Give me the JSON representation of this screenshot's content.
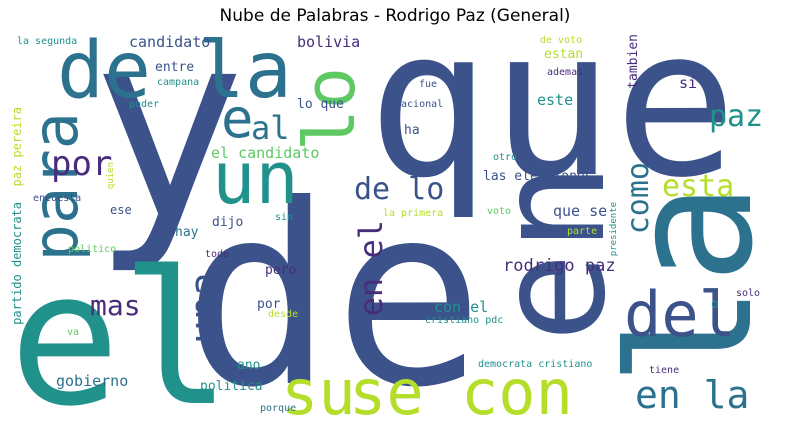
{
  "title": "Nube de Palabras - Rodrigo Paz (General)",
  "words": [
    {
      "text": "que",
      "color": "#3b528b"
    },
    {
      "text": "y",
      "color": "#3b528b"
    },
    {
      "text": "de",
      "color": "#3b528b"
    },
    {
      "text": "la",
      "color": "#2c728e"
    },
    {
      "text": "el",
      "color": "#21918c"
    },
    {
      "text": "en",
      "color": "#3b528b"
    },
    {
      "text": "de la",
      "color": "#2c728e"
    },
    {
      "text": "lo",
      "color": "#5ec962"
    },
    {
      "text": "para",
      "color": "#2c728e"
    },
    {
      "text": "un",
      "color": "#21918c"
    },
    {
      "text": "e",
      "color": "#2c728e"
    },
    {
      "text": "al",
      "color": "#2c728e"
    },
    {
      "text": "su",
      "color": "#b5de2b"
    },
    {
      "text": "se con",
      "color": "#b5de2b"
    },
    {
      "text": "del",
      "color": "#3b528b"
    },
    {
      "text": "una",
      "color": "#3b528b"
    },
    {
      "text": "en la",
      "color": "#2c728e"
    },
    {
      "text": "por",
      "color": "#472d7b"
    },
    {
      "text": "de lo",
      "color": "#3b528b"
    },
    {
      "text": "en el",
      "color": "#472d7b"
    },
    {
      "text": "esta",
      "color": "#b5de2b"
    },
    {
      "text": "como",
      "color": "#2c728e"
    },
    {
      "text": "paz",
      "color": "#21918c"
    },
    {
      "text": "mas",
      "color": "#472d7b"
    },
    {
      "text": "rodrigo paz",
      "color": "#472d7b"
    },
    {
      "text": "el candidato",
      "color": "#5ec962"
    },
    {
      "text": "candidato",
      "color": "#3b528b"
    },
    {
      "text": "bolivia",
      "color": "#472d7b"
    },
    {
      "text": "entre",
      "color": "#3b528b"
    },
    {
      "text": "lo que",
      "color": "#3b528b"
    },
    {
      "text": "las elecciones",
      "color": "#3b528b"
    },
    {
      "text": "que se",
      "color": "#3b528b"
    },
    {
      "text": "con el",
      "color": "#21918c"
    },
    {
      "text": "gobierno",
      "color": "#2c728e"
    },
    {
      "text": "politica",
      "color": "#21918c"
    },
    {
      "text": "por el",
      "color": "#3b528b"
    },
    {
      "text": "pero",
      "color": "#472d7b"
    },
    {
      "text": "dijo",
      "color": "#3b528b"
    },
    {
      "text": "hay",
      "color": "#2c728e"
    },
    {
      "text": "ha",
      "color": "#3b528b"
    },
    {
      "text": "este",
      "color": "#21918c"
    },
    {
      "text": "si",
      "color": "#472d7b"
    },
    {
      "text": "tambien",
      "color": "#472d7b"
    },
    {
      "text": "estan",
      "color": "#b5de2b"
    },
    {
      "text": "de voto",
      "color": "#b5de2b"
    },
    {
      "text": "ademas",
      "color": "#472d7b"
    },
    {
      "text": "fue",
      "color": "#3b528b"
    },
    {
      "text": "nacional",
      "color": "#3b528b"
    },
    {
      "text": "ano",
      "color": "#21918c"
    },
    {
      "text": "partido democrata",
      "color": "#21918c"
    },
    {
      "text": "paz pereira",
      "color": "#b5de2b"
    },
    {
      "text": "la segunda",
      "color": "#21918c"
    },
    {
      "text": "campana",
      "color": "#21918c"
    },
    {
      "text": "poder",
      "color": "#21918c"
    },
    {
      "text": "quien",
      "color": "#b5de2b"
    },
    {
      "text": "encuesta",
      "color": "#3b528b"
    },
    {
      "text": "ese",
      "color": "#3b528b"
    },
    {
      "text": "politico",
      "color": "#5ec962"
    },
    {
      "text": "todo",
      "color": "#472d7b"
    },
    {
      "text": "sin",
      "color": "#21918c"
    },
    {
      "text": "desde",
      "color": "#b5de2b"
    },
    {
      "text": "va",
      "color": "#5ec962"
    },
    {
      "text": "la primera",
      "color": "#b5de2b"
    },
    {
      "text": "voto",
      "color": "#5ec962"
    },
    {
      "text": "parte",
      "color": "#b5de2b"
    },
    {
      "text": "presidente",
      "color": "#21918c"
    },
    {
      "text": "otro",
      "color": "#21918c"
    },
    {
      "text": "cristiano pdc",
      "color": "#21918c"
    },
    {
      "text": "democrata cristiano",
      "color": "#21918c"
    },
    {
      "text": "tiene",
      "color": "#472d7b"
    },
    {
      "text": "porque",
      "color": "#2c728e"
    },
    {
      "text": "solo",
      "color": "#472d7b"
    },
    {
      "text": "o",
      "color": "#21918c"
    },
    {
      "text": "le",
      "color": "#2c728e"
    }
  ]
}
